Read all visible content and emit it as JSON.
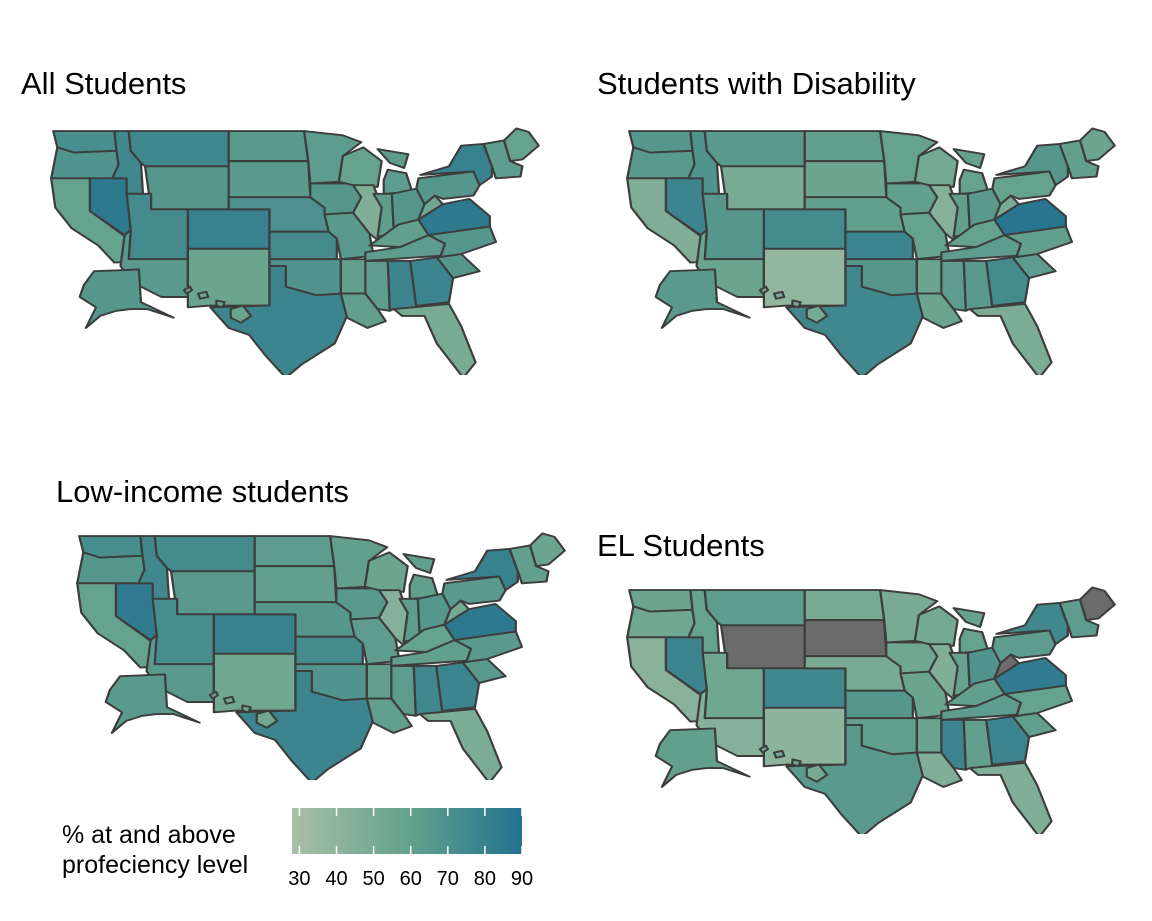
{
  "panels": [
    {
      "id": "all",
      "title": "All Students"
    },
    {
      "id": "disability",
      "title": "Students with Disability"
    },
    {
      "id": "lowincome",
      "title": "Low-income students"
    },
    {
      "id": "el",
      "title": "EL Students"
    }
  ],
  "legend": {
    "title_line1": "% at and above",
    "title_line2": "profeciency level",
    "range": [
      28,
      90
    ],
    "ticks": [
      "30",
      "40",
      "50",
      "60",
      "70",
      "80",
      "90"
    ]
  },
  "colors": {
    "low": "#a9bfa6",
    "mid": "#64a28d",
    "high": "#23728f",
    "missing": "#6b6b6b",
    "border": "#3d3d3d"
  },
  "map_data": {
    "all": {
      "WA": 72,
      "OR": 68,
      "CA": 58,
      "NV": 85,
      "ID": 76,
      "MT": 76,
      "WY": 66,
      "UT": 74,
      "AZ": 64,
      "CO": 80,
      "NM": 56,
      "ND": 64,
      "SD": 64,
      "NE": 70,
      "KS": 74,
      "OK": 68,
      "TX": 78,
      "MN": 62,
      "IA": 66,
      "MO": 64,
      "AR": 60,
      "LA": 60,
      "WI": 58,
      "IL": 46,
      "MI": 62,
      "IN": 62,
      "OH": 66,
      "KY": 60,
      "TN": 62,
      "MS": 62,
      "AL": 78,
      "GA": 78,
      "FL": 50,
      "SC": 66,
      "NC": 66,
      "VA": 85,
      "WV": 54,
      "PA": 66,
      "NY": 80,
      "NE_REGION": 62,
      "ME": 58,
      "AK": 66,
      "HI": 56
    },
    "disability": {
      "WA": 66,
      "OR": 64,
      "CA": 46,
      "NV": 78,
      "ID": 68,
      "MT": 64,
      "WY": 50,
      "UT": 66,
      "AZ": 56,
      "CO": 74,
      "NM": 38,
      "ND": 60,
      "SD": 56,
      "NE": 60,
      "KS": 78,
      "OK": 66,
      "TX": 76,
      "MN": 58,
      "IA": 60,
      "MO": 58,
      "AR": 56,
      "LA": 56,
      "WI": 52,
      "IL": 44,
      "MI": 58,
      "IN": 60,
      "OH": 64,
      "KY": 58,
      "TN": 62,
      "MS": 62,
      "AL": 64,
      "GA": 74,
      "FL": 48,
      "SC": 62,
      "NC": 60,
      "VA": 88,
      "WV": 50,
      "PA": 58,
      "NY": 66,
      "NE_REGION": 60,
      "ME": 56,
      "AK": 64,
      "HI": 52
    },
    "lowincome": {
      "WA": 72,
      "OR": 66,
      "CA": 58,
      "NV": 84,
      "ID": 76,
      "MT": 74,
      "WY": 64,
      "UT": 72,
      "AZ": 64,
      "CO": 80,
      "NM": 54,
      "ND": 62,
      "SD": 60,
      "NE": 66,
      "KS": 74,
      "OK": 68,
      "TX": 78,
      "MN": 60,
      "IA": 64,
      "MO": 62,
      "AR": 60,
      "LA": 60,
      "WI": 56,
      "IL": 44,
      "MI": 60,
      "IN": 62,
      "OH": 66,
      "KY": 58,
      "TN": 60,
      "MS": 62,
      "AL": 76,
      "GA": 78,
      "FL": 48,
      "SC": 64,
      "NC": 64,
      "VA": 85,
      "WV": 52,
      "PA": 64,
      "NY": 80,
      "NE_REGION": 60,
      "ME": 56,
      "AK": 64,
      "HI": 54
    },
    "el": {
      "WA": 56,
      "OR": 54,
      "CA": 42,
      "NV": 78,
      "ID": 58,
      "MT": 62,
      "WY": null,
      "UT": 54,
      "AZ": 44,
      "CO": 76,
      "NM": 40,
      "ND": 50,
      "SD": null,
      "NE": 50,
      "KS": 66,
      "OK": 60,
      "TX": 64,
      "MN": 50,
      "IA": 54,
      "MO": 56,
      "AR": 56,
      "LA": 46,
      "WI": 52,
      "IL": 46,
      "MI": 58,
      "IN": 58,
      "OH": 68,
      "KY": 60,
      "TN": 62,
      "MS": 78,
      "AL": 60,
      "GA": 78,
      "FL": 46,
      "SC": 60,
      "NC": 58,
      "VA": 84,
      "WV": null,
      "PA": 62,
      "NY": 76,
      "NE_REGION": 62,
      "ME": null,
      "AK": 60,
      "HI": 52
    }
  }
}
